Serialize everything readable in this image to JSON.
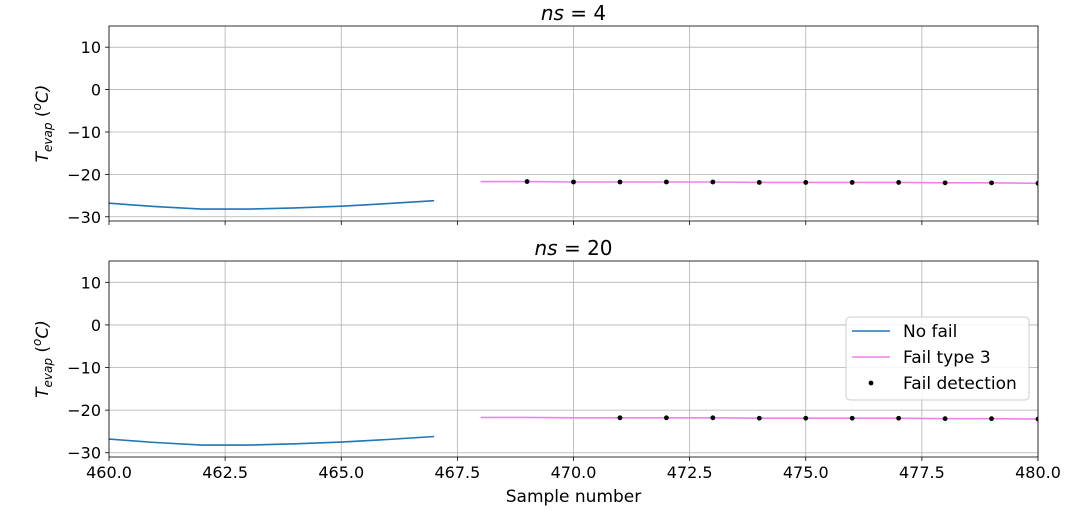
{
  "chart_data": [
    {
      "type": "line",
      "title": "ns = 4",
      "title_main": "ns",
      "title_rest": " = 4",
      "xlabel": "",
      "ylabel": "T_evap (ºC)",
      "ylabel_main": "T",
      "ylabel_sub": "evap",
      "ylabel_unit_open": " (",
      "ylabel_unit_sup": "o",
      "ylabel_unit_close": "C)",
      "xlim": [
        460,
        480
      ],
      "ylim": [
        -31,
        15
      ],
      "yticks": [
        10,
        0,
        -10,
        -20,
        -30
      ],
      "ytick_labels": [
        "10",
        "0",
        "−10",
        "−20",
        "−30"
      ],
      "grid": true,
      "series": [
        {
          "name": "No fail",
          "color": "#1f77b4",
          "style": "line",
          "x": [
            460,
            461,
            462,
            463,
            464,
            465,
            466,
            467
          ],
          "y": [
            -26.8,
            -27.6,
            -28.2,
            -28.2,
            -27.9,
            -27.5,
            -26.9,
            -26.2
          ]
        },
        {
          "name": "Fail type 3",
          "color": "#ee82ee",
          "style": "line",
          "x": [
            468,
            469,
            470,
            471,
            472,
            473,
            474,
            475,
            476,
            477,
            478,
            479,
            480
          ],
          "y": [
            -21.7,
            -21.7,
            -21.8,
            -21.8,
            -21.8,
            -21.8,
            -21.9,
            -21.9,
            -21.9,
            -21.9,
            -22.0,
            -22.0,
            -22.1
          ]
        },
        {
          "name": "Fail detection",
          "color": "#000000",
          "style": "points",
          "x": [
            469,
            470,
            471,
            472,
            473,
            474,
            475,
            476,
            477,
            478,
            479,
            480
          ],
          "y": [
            -21.7,
            -21.8,
            -21.8,
            -21.8,
            -21.8,
            -21.9,
            -21.9,
            -21.9,
            -21.9,
            -22.0,
            -22.0,
            -22.1
          ]
        }
      ]
    },
    {
      "type": "line",
      "title": "ns = 20",
      "title_main": "ns",
      "title_rest": " = 20",
      "xlabel": "Sample number",
      "ylabel": "T_evap (ºC)",
      "ylabel_main": "T",
      "ylabel_sub": "evap",
      "ylabel_unit_open": " (",
      "ylabel_unit_sup": "o",
      "ylabel_unit_close": "C)",
      "xlim": [
        460,
        480
      ],
      "ylim": [
        -31,
        15
      ],
      "xticks": [
        460,
        462.5,
        465,
        467.5,
        470,
        472.5,
        475,
        477.5,
        480
      ],
      "xtick_labels": [
        "460.0",
        "462.5",
        "465.0",
        "467.5",
        "470.0",
        "472.5",
        "475.0",
        "477.5",
        "480.0"
      ],
      "yticks": [
        10,
        0,
        -10,
        -20,
        -30
      ],
      "ytick_labels": [
        "10",
        "0",
        "−10",
        "−20",
        "−30"
      ],
      "grid": true,
      "legend": {
        "position": "center-right",
        "entries": [
          "No fail",
          "Fail type 3",
          "Fail detection"
        ]
      },
      "series": [
        {
          "name": "No fail",
          "color": "#1f77b4",
          "style": "line",
          "x": [
            460,
            461,
            462,
            463,
            464,
            465,
            466,
            467
          ],
          "y": [
            -26.8,
            -27.6,
            -28.2,
            -28.2,
            -27.9,
            -27.5,
            -26.9,
            -26.2
          ]
        },
        {
          "name": "Fail type 3",
          "color": "#ee82ee",
          "style": "line",
          "x": [
            468,
            469,
            470,
            471,
            472,
            473,
            474,
            475,
            476,
            477,
            478,
            479,
            480
          ],
          "y": [
            -21.7,
            -21.7,
            -21.8,
            -21.8,
            -21.8,
            -21.8,
            -21.9,
            -21.9,
            -21.9,
            -21.9,
            -22.0,
            -22.0,
            -22.1
          ]
        },
        {
          "name": "Fail detection",
          "color": "#000000",
          "style": "points",
          "x": [
            471,
            472,
            473,
            474,
            475,
            476,
            477,
            478,
            479,
            480
          ],
          "y": [
            -21.8,
            -21.8,
            -21.8,
            -21.9,
            -21.9,
            -21.9,
            -21.9,
            -22.0,
            -22.0,
            -22.1
          ]
        }
      ]
    }
  ]
}
